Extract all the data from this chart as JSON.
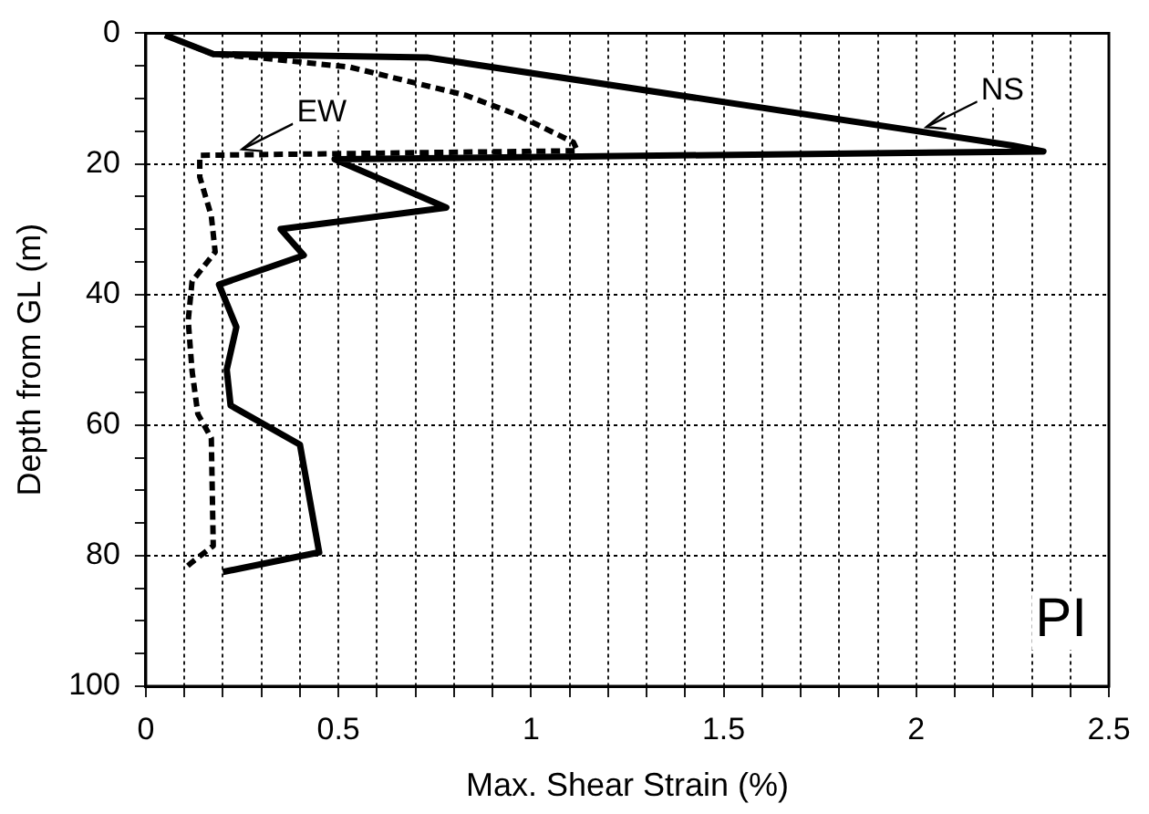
{
  "chart_data": {
    "type": "line",
    "xlabel": "Max. Shear Strain (%)",
    "ylabel": "Depth from GL (m)",
    "xlim": [
      0,
      2.5
    ],
    "ylim": [
      100,
      0
    ],
    "xticks": [
      0,
      {
        "value": 0.1,
        "label": null
      },
      {
        "value": 0.2,
        "label": null
      },
      {
        "value": 0.3,
        "label": null
      },
      {
        "value": 0.4,
        "label": null
      },
      0.5,
      {
        "value": 0.6,
        "label": null
      },
      {
        "value": 0.7,
        "label": null
      },
      {
        "value": 0.8,
        "label": null
      },
      {
        "value": 0.9,
        "label": null
      },
      1,
      {
        "value": 1.1,
        "label": null
      },
      {
        "value": 1.2,
        "label": null
      },
      {
        "value": 1.3,
        "label": null
      },
      {
        "value": 1.4,
        "label": null
      },
      1.5,
      {
        "value": 1.6,
        "label": null
      },
      {
        "value": 1.7,
        "label": null
      },
      {
        "value": 1.8,
        "label": null
      },
      {
        "value": 1.9,
        "label": null
      },
      2,
      {
        "value": 2.1,
        "label": null
      },
      {
        "value": 2.2,
        "label": null
      },
      {
        "value": 2.3,
        "label": null
      },
      {
        "value": 2.4,
        "label": null
      },
      2.5
    ],
    "yticks": [
      0,
      {
        "value": 5,
        "label": null
      },
      {
        "value": 10,
        "label": null
      },
      {
        "value": 15,
        "label": null
      },
      20,
      {
        "value": 25,
        "label": null
      },
      {
        "value": 30,
        "label": null
      },
      {
        "value": 35,
        "label": null
      },
      40,
      {
        "value": 45,
        "label": null
      },
      {
        "value": 50,
        "label": null
      },
      {
        "value": 55,
        "label": null
      },
      60,
      {
        "value": 65,
        "label": null
      },
      {
        "value": 70,
        "label": null
      },
      {
        "value": 75,
        "label": null
      },
      80,
      {
        "value": 85,
        "label": null
      },
      {
        "value": 90,
        "label": null
      },
      {
        "value": 95,
        "label": null
      },
      100
    ],
    "grid": true,
    "marker": "none",
    "series": [
      {
        "name": "NS",
        "color": "#000000",
        "line_style": "solid",
        "x": [
          0.05,
          0.175,
          0.73,
          2.25,
          2.33,
          0.49,
          0.78,
          0.35,
          0.41,
          0.19,
          0.235,
          0.21,
          0.22,
          0.4,
          0.45,
          0.2
        ],
        "values": [
          0.3,
          3.2,
          3.7,
          17.2,
          18.1,
          19.3,
          26.7,
          30,
          34,
          38.5,
          45,
          51.5,
          57,
          63,
          79.5,
          82.5
        ]
      },
      {
        "name": "EW",
        "color": "#000000",
        "line_style": "dashed",
        "x": [
          0.05,
          0.175,
          0.3,
          0.53,
          0.67,
          0.83,
          0.96,
          1.11,
          1.12,
          0.14,
          0.14,
          0.17,
          0.18,
          0.12,
          0.11,
          0.12,
          0.135,
          0.17,
          0.175,
          0.12,
          0.1
        ],
        "values": [
          0.3,
          3.2,
          3.8,
          5.2,
          7.2,
          9.5,
          12.4,
          16.7,
          18,
          18.7,
          22,
          28,
          33.5,
          38,
          44,
          51.7,
          58.3,
          62,
          78.5,
          81,
          82
        ]
      }
    ],
    "annotations": [
      "PI"
    ]
  }
}
